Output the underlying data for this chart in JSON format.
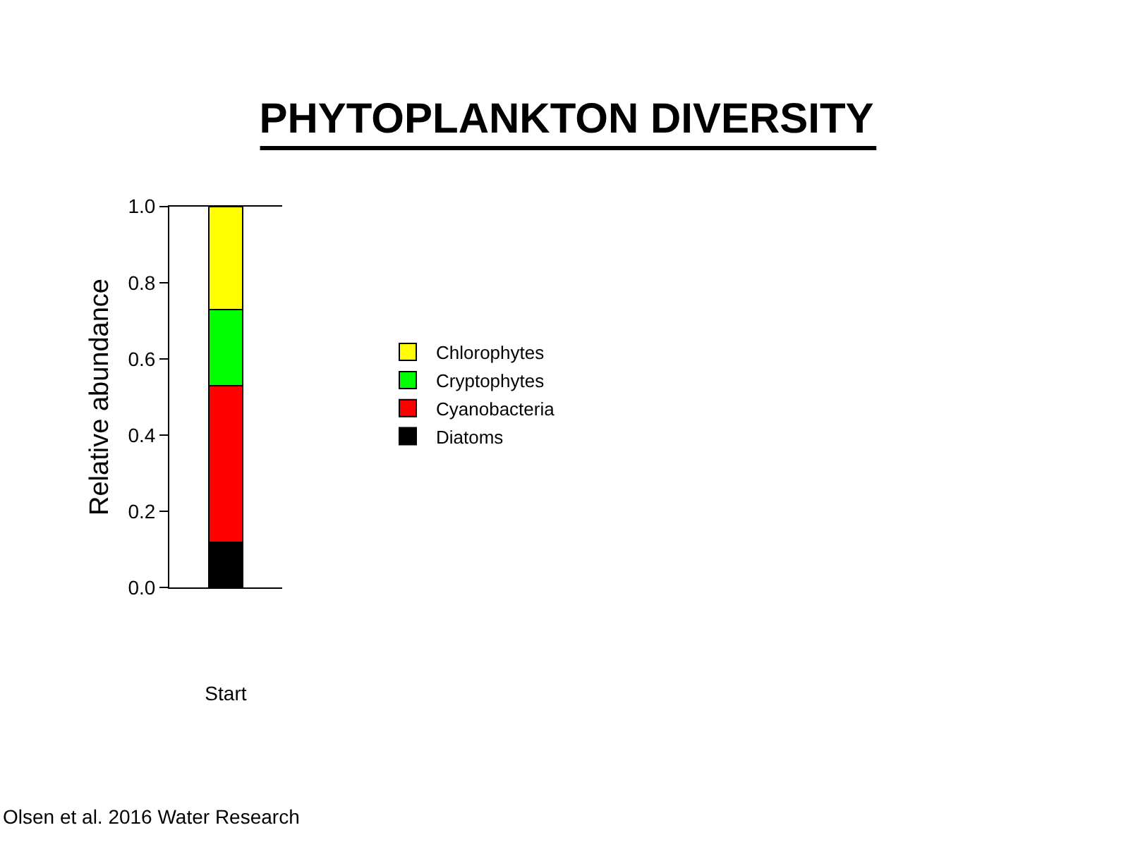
{
  "chart_data": {
    "type": "bar",
    "title": "PHYTOPLANKTON DIVERSITY",
    "ylabel": "Relative abundance",
    "categories": [
      "Start"
    ],
    "stacked": true,
    "ylim": [
      0,
      1
    ],
    "yticks": [
      {
        "value": 0,
        "label": "0.0"
      },
      {
        "value": 0.2,
        "label": "0.2"
      },
      {
        "value": 0.4,
        "label": "0.4"
      },
      {
        "value": 0.6,
        "label": "0.6"
      },
      {
        "value": 0.8,
        "label": "0.8"
      },
      {
        "value": 1,
        "label": "1.0"
      }
    ],
    "legend": "right",
    "series": [
      {
        "name": "Diatoms",
        "color": "#000000",
        "values": [
          0.12
        ]
      },
      {
        "name": "Cyanobacteria",
        "color": "#ff0000",
        "values": [
          0.41
        ]
      },
      {
        "name": "Cryptophytes",
        "color": "#00ff00",
        "values": [
          0.2
        ]
      },
      {
        "name": "Chlorophytes",
        "color": "#ffff00",
        "values": [
          0.27
        ]
      }
    ],
    "annotations": [
      "Olsen et al. 2016 Water Research"
    ]
  }
}
